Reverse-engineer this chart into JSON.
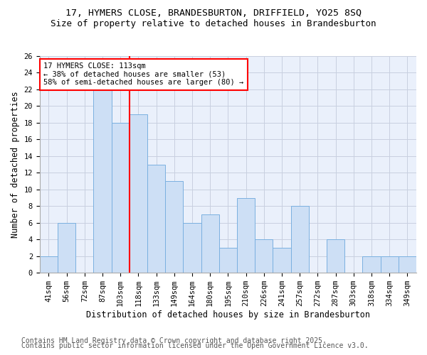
{
  "title_line1": "17, HYMERS CLOSE, BRANDESBURTON, DRIFFIELD, YO25 8SQ",
  "title_line2": "Size of property relative to detached houses in Brandesburton",
  "xlabel": "Distribution of detached houses by size in Brandesburton",
  "ylabel": "Number of detached properties",
  "categories": [
    "41sqm",
    "56sqm",
    "72sqm",
    "87sqm",
    "103sqm",
    "118sqm",
    "133sqm",
    "149sqm",
    "164sqm",
    "180sqm",
    "195sqm",
    "210sqm",
    "226sqm",
    "241sqm",
    "257sqm",
    "272sqm",
    "287sqm",
    "303sqm",
    "318sqm",
    "334sqm",
    "349sqm"
  ],
  "values": [
    2,
    6,
    0,
    22,
    18,
    19,
    13,
    11,
    6,
    7,
    3,
    9,
    4,
    3,
    8,
    0,
    4,
    0,
    2,
    2,
    2
  ],
  "bar_color": "#cddff5",
  "bar_edge_color": "#7ab0e0",
  "vline_index": 5,
  "highlight_box_text": "17 HYMERS CLOSE: 113sqm\n← 38% of detached houses are smaller (53)\n58% of semi-detached houses are larger (80) →",
  "vline_color": "red",
  "box_edge_color": "red",
  "ylim": [
    0,
    26
  ],
  "yticks": [
    0,
    2,
    4,
    6,
    8,
    10,
    12,
    14,
    16,
    18,
    20,
    22,
    24,
    26
  ],
  "grid_color": "#c8d0e0",
  "background_color": "#eaf0fb",
  "footer_line1": "Contains HM Land Registry data © Crown copyright and database right 2025.",
  "footer_line2": "Contains public sector information licensed under the Open Government Licence v3.0.",
  "title_fontsize": 9.5,
  "subtitle_fontsize": 9,
  "axis_label_fontsize": 8.5,
  "tick_fontsize": 7.5,
  "footer_fontsize": 7,
  "annot_fontsize": 7.5
}
